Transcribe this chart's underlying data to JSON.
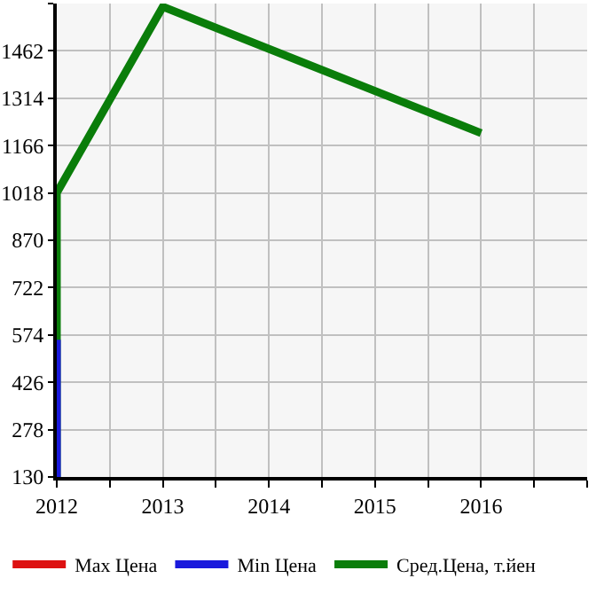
{
  "chart_data": {
    "type": "line",
    "series": [
      {
        "name": "Max Цена",
        "color": "#dd1111"
      },
      {
        "name": "Min Цена",
        "color": "#1a1adc",
        "x": [
          2012,
          2012
        ],
        "values": [
          130,
          559
        ]
      },
      {
        "name": "Сред.Цена, т.йен",
        "color": "#0a7d0a",
        "x": [
          2012,
          2012,
          2013,
          2016
        ],
        "values": [
          130,
          1018,
          1600,
          1205
        ]
      }
    ],
    "xlim": [
      2012,
      2017
    ],
    "xticks": [
      2012,
      {
        "value": 2012.5,
        "label": null
      },
      2013,
      {
        "value": 2013.5,
        "label": null
      },
      2014,
      {
        "value": 2014.5,
        "label": null
      },
      2015,
      {
        "value": 2015.5,
        "label": null
      },
      2016,
      {
        "value": 2016.5,
        "label": null
      },
      {
        "value": 2017,
        "label": null
      }
    ],
    "ylim": [
      130,
      1610
    ],
    "yticks": [
      130,
      278,
      426,
      574,
      722,
      870,
      1018,
      1166,
      1314,
      1462,
      {
        "value": 1610,
        "label": null
      }
    ],
    "grid": true,
    "legend": "bottom",
    "marker": "none",
    "line_style": "solid"
  }
}
